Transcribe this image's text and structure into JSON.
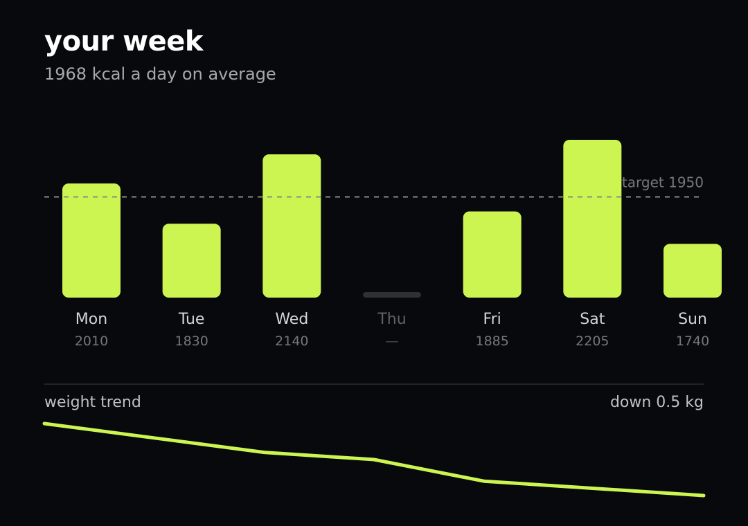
{
  "header": {
    "title": "your week",
    "subtitle": "1968 kcal a day on average"
  },
  "colors": {
    "accent": "#ccf552",
    "background": "#08090c",
    "missing": "#2f3034",
    "target_line": "#8a8c80"
  },
  "chart_data": [
    {
      "type": "bar",
      "categories": [
        "Mon",
        "Tue",
        "Wed",
        "Thu",
        "Fri",
        "Sat",
        "Sun"
      ],
      "values": [
        2010,
        1830,
        2140,
        null,
        1885,
        2205,
        1740
      ],
      "value_labels": [
        "2010",
        "1830",
        "2140",
        "—",
        "1885",
        "2205",
        "1740"
      ],
      "ylim": [
        0,
        2205
      ],
      "grid": false,
      "target": {
        "value": 1950,
        "label": "target 1950"
      }
    },
    {
      "type": "line",
      "title": "weight trend",
      "annotation": "down 0.5 kg",
      "x": [
        "Mon",
        "Tue",
        "Wed",
        "Thu",
        "Fri",
        "Sat",
        "Sun"
      ],
      "values": [
        0.0,
        -0.1,
        -0.2,
        -0.25,
        -0.4,
        -0.45,
        -0.5
      ],
      "ylim": [
        -0.5,
        0.0
      ]
    }
  ]
}
